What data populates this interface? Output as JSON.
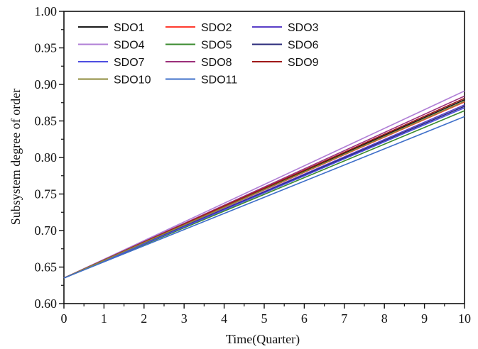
{
  "chart_data": {
    "type": "line",
    "title": "",
    "xlabel": "Time(Quarter)",
    "ylabel": "Subsystem degree of order",
    "xlim": [
      0,
      10
    ],
    "ylim": [
      0.6,
      1.0
    ],
    "x_ticks": [
      "0",
      "1",
      "2",
      "3",
      "4",
      "5",
      "6",
      "7",
      "8",
      "9",
      "10"
    ],
    "y_ticks": [
      "0.60",
      "0.65",
      "0.70",
      "0.75",
      "0.80",
      "0.85",
      "0.90",
      "0.95",
      "1.00"
    ],
    "grid": false,
    "legend_position": "top-left",
    "x": [
      0,
      10
    ],
    "series": [
      {
        "name": "SDO1",
        "color": "#1a1a1a",
        "values": [
          0.635,
          0.879
        ]
      },
      {
        "name": "SDO2",
        "color": "#ff3b2f",
        "values": [
          0.635,
          0.876
        ]
      },
      {
        "name": "SDO3",
        "color": "#5a3fc8",
        "values": [
          0.635,
          0.872
        ]
      },
      {
        "name": "SDO4",
        "color": "#b07fd6",
        "values": [
          0.635,
          0.891
        ]
      },
      {
        "name": "SDO5",
        "color": "#3a8a2e",
        "values": [
          0.635,
          0.864
        ]
      },
      {
        "name": "SDO6",
        "color": "#2a2a7a",
        "values": [
          0.635,
          0.87
        ]
      },
      {
        "name": "SDO7",
        "color": "#4d4de0",
        "values": [
          0.635,
          0.868
        ]
      },
      {
        "name": "SDO8",
        "color": "#9b2f7a",
        "values": [
          0.635,
          0.884
        ]
      },
      {
        "name": "SDO9",
        "color": "#a01818",
        "values": [
          0.635,
          0.881
        ]
      },
      {
        "name": "SDO10",
        "color": "#8c8a3a",
        "values": [
          0.635,
          0.877
        ]
      },
      {
        "name": "SDO11",
        "color": "#3e6fc9",
        "values": [
          0.635,
          0.856
        ]
      }
    ]
  }
}
